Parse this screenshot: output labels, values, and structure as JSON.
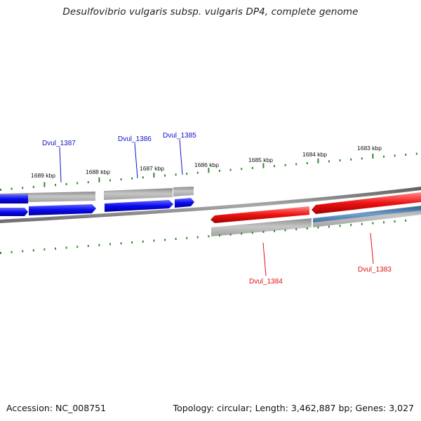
{
  "title": "Desulfovibrio vulgaris subsp. vulgaris DP4, complete genome",
  "footer": {
    "accession": "Accession: NC_008751",
    "topology": "Topology: circular; Length: 3,462,887 bp; Genes: 3,027"
  },
  "colors": {
    "backbone": "#7c7c7c",
    "tick": "#2e8b2e",
    "forward_cds": "#0a0aee",
    "reverse_cds": "#ee1111",
    "gene_gray": "#b4b4b4",
    "gene_steelblue": "#4a7fb0",
    "forward_label": "#1010cc",
    "reverse_label": "#dd1111"
  },
  "scale_labels": [
    "1689 kbp",
    "1688 kbp",
    "1687 kbp",
    "1686 kbp",
    "1685 kbp",
    "1684 kbp",
    "1683 kbp"
  ],
  "genes": [
    {
      "locus": "Dvul_1387",
      "strand": "forward"
    },
    {
      "locus": "Dvul_1386",
      "strand": "forward"
    },
    {
      "locus": "Dvul_1385",
      "strand": "forward"
    },
    {
      "locus": "Dvul_1384",
      "strand": "reverse"
    },
    {
      "locus": "Dvul_1383",
      "strand": "reverse"
    }
  ]
}
